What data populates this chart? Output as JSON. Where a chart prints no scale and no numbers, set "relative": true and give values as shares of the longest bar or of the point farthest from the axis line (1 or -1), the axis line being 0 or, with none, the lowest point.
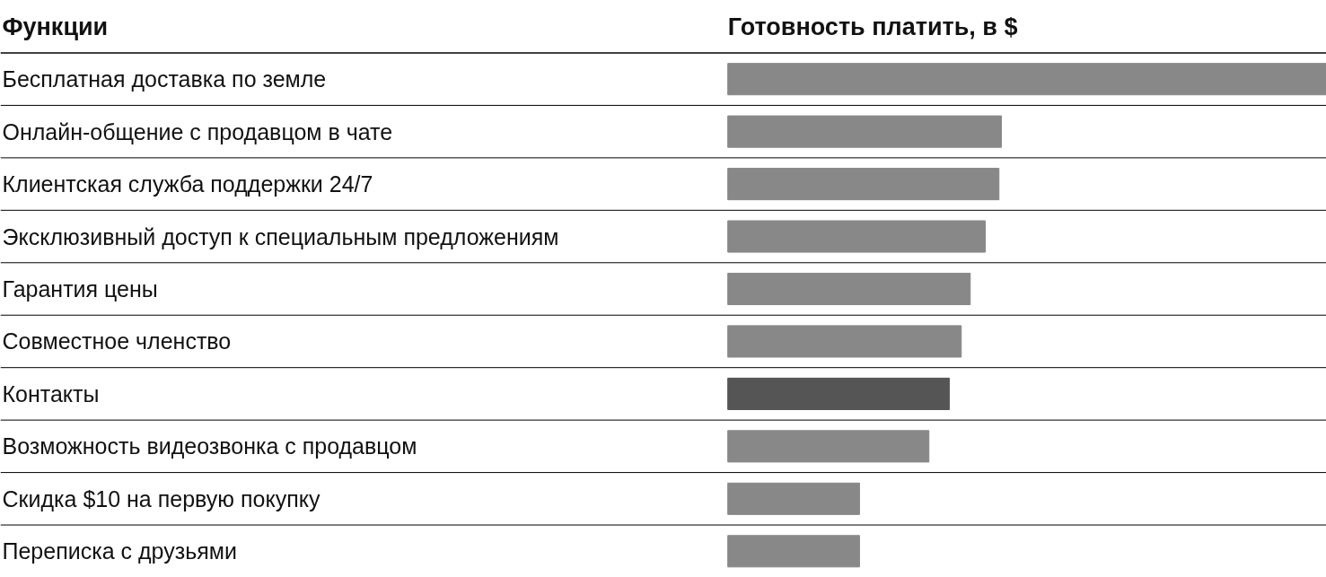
{
  "chart_data": {
    "type": "bar",
    "orientation": "horizontal",
    "relative": true,
    "ylabel": "Функции",
    "xlabel": "Готовность платить, в $",
    "categories": [
      "Бесплатная доставка по земле",
      "Онлайн-общение с продавцом в чате",
      "Клиентская служба поддержки 24/7",
      "Эксклюзивный доступ к специальным предложениям",
      "Гарантия цены",
      "Совместное членство",
      "Контакты",
      "Возможность видеозвонка с продавцом",
      "Скидка $10 на первую покупку",
      "Переписка с друзьями"
    ],
    "values": [
      1,
      0.457,
      0.453,
      0.43,
      0.405,
      0.39,
      0.37,
      0.336,
      0.22,
      0.22
    ],
    "colors": [
      "#888888",
      "#888888",
      "#888888",
      "#888888",
      "#888888",
      "#888888",
      "#555555",
      "#888888",
      "#888888",
      "#888888"
    ],
    "grid": "y"
  }
}
